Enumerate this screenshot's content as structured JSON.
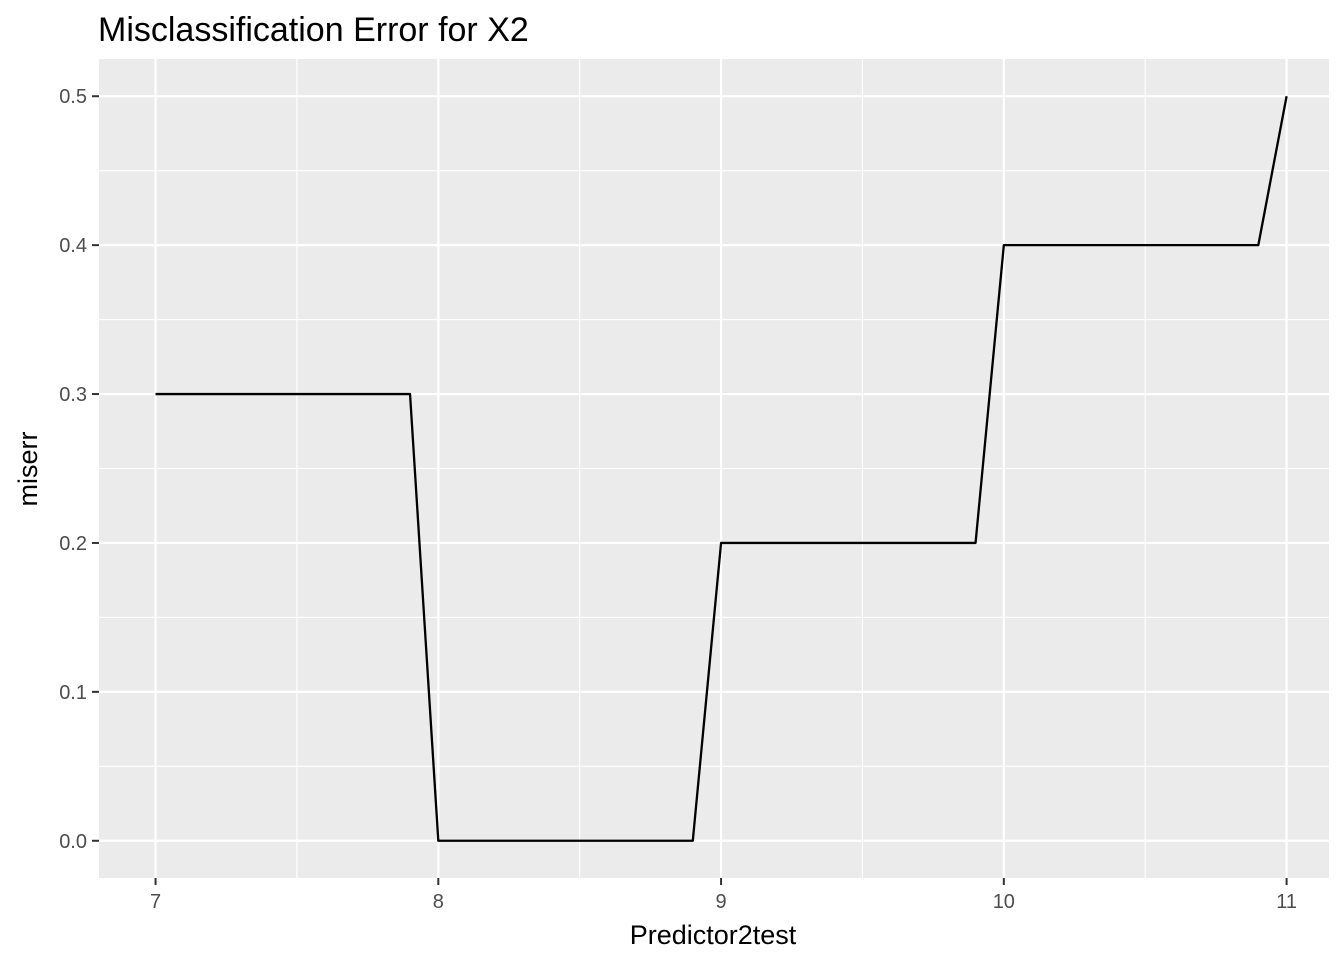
{
  "chart_data": {
    "type": "line",
    "title": "Misclassification Error for X2",
    "xlabel": "Predictor2test",
    "ylabel": "miserr",
    "xlim": [
      6.8,
      11.15
    ],
    "ylim": [
      -0.025,
      0.525
    ],
    "x_ticks": [
      7,
      8,
      9,
      10,
      11
    ],
    "x_tick_labels": [
      "7",
      "8",
      "9",
      "10",
      "11"
    ],
    "y_ticks": [
      0.0,
      0.1,
      0.2,
      0.3,
      0.4,
      0.5
    ],
    "y_tick_labels": [
      "0.0",
      "0.1",
      "0.2",
      "0.3",
      "0.4",
      "0.5"
    ],
    "grid": true,
    "background": "#ebebeb",
    "grid_color": "#ffffff",
    "line_color": "#000000",
    "series": [
      {
        "name": "miserr",
        "x": [
          7.0,
          7.1,
          7.2,
          7.3,
          7.4,
          7.5,
          7.6,
          7.7,
          7.8,
          7.9,
          8.0,
          8.1,
          8.2,
          8.3,
          8.4,
          8.5,
          8.6,
          8.7,
          8.8,
          8.9,
          9.0,
          9.1,
          9.2,
          9.3,
          9.4,
          9.5,
          9.6,
          9.7,
          9.8,
          9.9,
          10.0,
          10.1,
          10.2,
          10.3,
          10.4,
          10.5,
          10.6,
          10.7,
          10.8,
          10.9,
          11.0
        ],
        "values": [
          0.3,
          0.3,
          0.3,
          0.3,
          0.3,
          0.3,
          0.3,
          0.3,
          0.3,
          0.3,
          0.0,
          0.0,
          0.0,
          0.0,
          0.0,
          0.0,
          0.0,
          0.0,
          0.0,
          0.0,
          0.2,
          0.2,
          0.2,
          0.2,
          0.2,
          0.2,
          0.2,
          0.2,
          0.2,
          0.2,
          0.4,
          0.4,
          0.4,
          0.4,
          0.4,
          0.4,
          0.4,
          0.4,
          0.4,
          0.4,
          0.5
        ]
      }
    ]
  }
}
